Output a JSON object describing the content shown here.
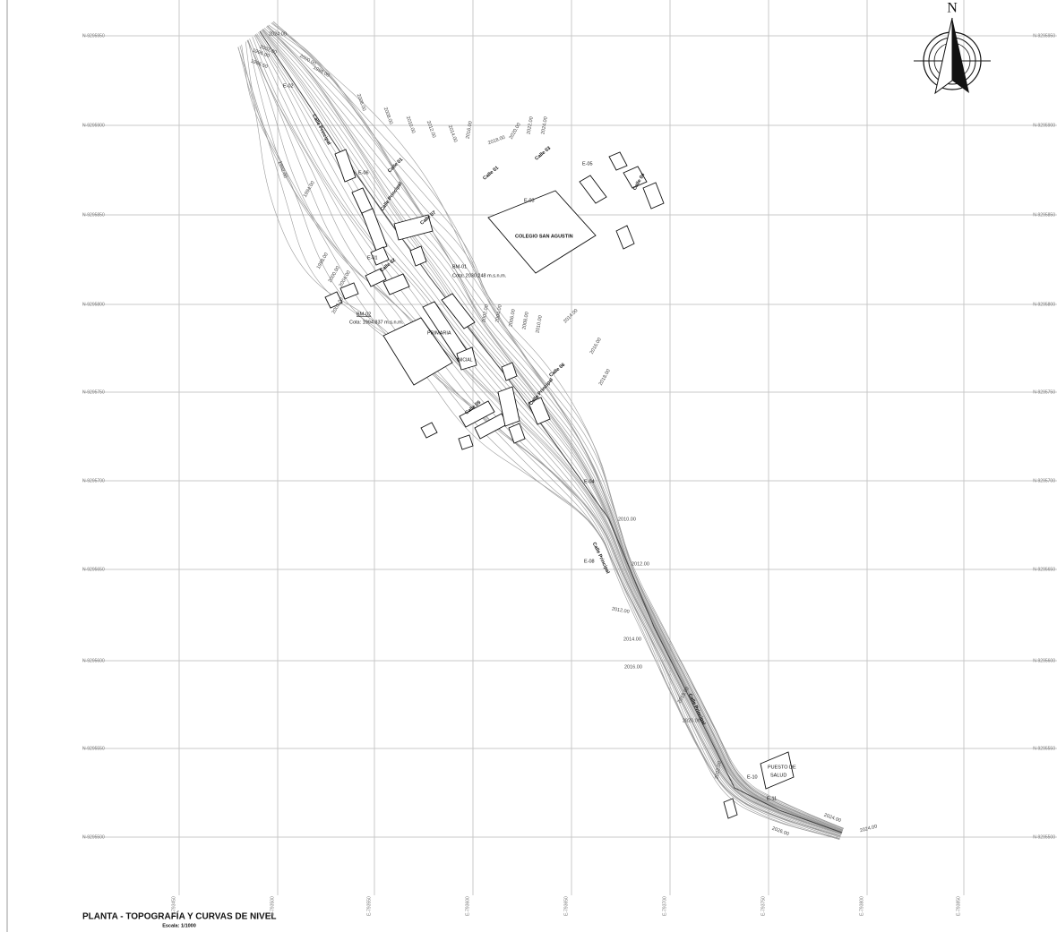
{
  "title": "PLANTA - TOPOGRAFÍA Y CURVAS DE NIVEL",
  "scale": "Escala: 1/1000",
  "north": "N",
  "grid": {
    "northings": [
      "N-9295950",
      "N-9295900",
      "N-9295850",
      "N-9295800",
      "N-9295750",
      "N-9295700",
      "N-9295650",
      "N-9295600",
      "N-9295550",
      "N-9295500"
    ],
    "eastings": [
      "E-793450",
      "E-793500",
      "E-793550",
      "E-793600",
      "E-793650",
      "E-793700",
      "E-793750",
      "E-793800",
      "E-793850"
    ]
  },
  "streets": [
    "Calle Principal",
    "Calle Principal",
    "Calle 01",
    "Calle 07",
    "Calle 02",
    "Calle 01",
    "Calle 03",
    "Calle 04",
    "Calle 05",
    "Calle Principal",
    "Calle 06",
    "Calle Principal",
    "Calle Principal"
  ],
  "buildings": [
    [
      "COLEGIO SAN AGUSTIN"
    ],
    [
      "PRIMARIA"
    ],
    [
      "INICIAL"
    ],
    [
      "PUESTO DE",
      "SALUD"
    ]
  ],
  "benchmarks": [
    {
      "name": "BM-01",
      "elevation": "Cota: 2030.248 m.s.n.m."
    },
    {
      "name": "BM-02",
      "elevation": "Cota: 1994.837 m.s.n.m."
    }
  ],
  "stations": [
    "E-02",
    "E-06",
    "E-01",
    "E-03",
    "E-05",
    "E-04",
    "E-08",
    "E-10",
    "E-11"
  ],
  "contour_labels": [
    "2024.00",
    "2002.00",
    "2000.00",
    "1998.00",
    "1996.50",
    "1996.00",
    "1992.00",
    "1994.00",
    "1998.00",
    "2000.00",
    "2002.00",
    "2004.00",
    "2006.00",
    "2008.00",
    "2010.00",
    "2012.00",
    "2014.00",
    "2016.00",
    "2018.00",
    "2020.00",
    "2022.00",
    "2024.00",
    "2002.00",
    "2004.00",
    "2006.00",
    "2008.00",
    "2010.00",
    "2014.00",
    "2016.00",
    "2018.00",
    "2010.00",
    "2012.00",
    "2012.00",
    "2014.00",
    "2016.00",
    "2018.00",
    "2020.00",
    "2022.00",
    "2024.00",
    "2026.00",
    "2024.00"
  ]
}
